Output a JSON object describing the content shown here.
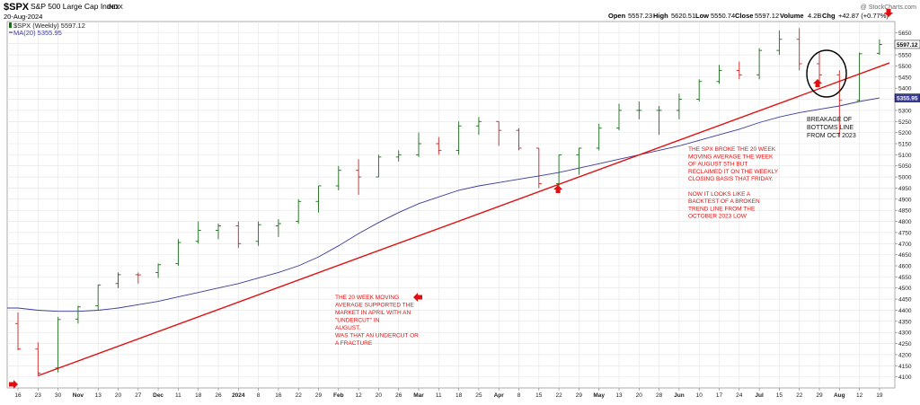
{
  "header": {
    "symbol": "$SPX",
    "name": "S&P 500 Large Cap Index",
    "exchange": "INDX",
    "date": "20-Aug-2024",
    "watermark": "@ StockCharts.com",
    "open_label": "Open",
    "open": "5557.23",
    "high_label": "High",
    "high": "5620.51",
    "low_label": "Low",
    "low": "5550.74",
    "close_label": "Close",
    "close": "5597.12",
    "volume_label": "Volume",
    "volume": "4.2B",
    "chg_label": "Chg",
    "chg": "+42.87 (+0.77%)"
  },
  "legend": [
    {
      "text": "$SPX (Weekly) 5597.12",
      "color": "#222222"
    },
    {
      "text": "MA(20) 5355.95",
      "color": "#3b3b9a"
    }
  ],
  "price_tags": [
    {
      "text": "5597.12",
      "value": 5597.12,
      "bg": "#ffffff",
      "fg": "#000000"
    },
    {
      "text": "5355.95",
      "value": 5355.95,
      "bg": "#3b3b9a",
      "fg": "#ffffff"
    }
  ],
  "colors": {
    "up": "#1a6b1a",
    "down": "#cc2222",
    "ma": "#3b3b9a",
    "trend": "#e01010",
    "annotation": "#e01010"
  },
  "chart_data": {
    "type": "ohlc",
    "ylim": [
      4050,
      5700
    ],
    "yticks": [
      4100,
      4150,
      4200,
      4250,
      4300,
      4350,
      4400,
      4450,
      4500,
      4550,
      4600,
      4650,
      4700,
      4750,
      4800,
      4850,
      4900,
      4950,
      5000,
      5050,
      5100,
      5150,
      5200,
      5250,
      5300,
      5350,
      5400,
      5450,
      5500,
      5550,
      5600,
      5650
    ],
    "xticks": [
      {
        "i": 0,
        "label": "16"
      },
      {
        "i": 1,
        "label": "23"
      },
      {
        "i": 2,
        "label": "30"
      },
      {
        "i": 3,
        "label": "Nov",
        "bold": true
      },
      {
        "i": 4,
        "label": "13"
      },
      {
        "i": 5,
        "label": "20"
      },
      {
        "i": 6,
        "label": "27"
      },
      {
        "i": 7,
        "label": "Dec",
        "bold": true
      },
      {
        "i": 8,
        "label": "11"
      },
      {
        "i": 9,
        "label": "18"
      },
      {
        "i": 10,
        "label": "26"
      },
      {
        "i": 11,
        "label": "2024",
        "bold": true
      },
      {
        "i": 12,
        "label": "8"
      },
      {
        "i": 13,
        "label": "16"
      },
      {
        "i": 14,
        "label": "22"
      },
      {
        "i": 15,
        "label": "29"
      },
      {
        "i": 16,
        "label": "Feb",
        "bold": true
      },
      {
        "i": 17,
        "label": "12"
      },
      {
        "i": 18,
        "label": "20"
      },
      {
        "i": 19,
        "label": "26"
      },
      {
        "i": 20,
        "label": "Mar",
        "bold": true
      },
      {
        "i": 21,
        "label": "11"
      },
      {
        "i": 22,
        "label": "18"
      },
      {
        "i": 23,
        "label": "25"
      },
      {
        "i": 24,
        "label": "Apr",
        "bold": true
      },
      {
        "i": 25,
        "label": "8"
      },
      {
        "i": 26,
        "label": "15"
      },
      {
        "i": 27,
        "label": "22"
      },
      {
        "i": 28,
        "label": "29"
      },
      {
        "i": 29,
        "label": "May",
        "bold": true
      },
      {
        "i": 30,
        "label": "13"
      },
      {
        "i": 31,
        "label": "20"
      },
      {
        "i": 32,
        "label": "28"
      },
      {
        "i": 33,
        "label": "Jun",
        "bold": true
      },
      {
        "i": 34,
        "label": "10"
      },
      {
        "i": 35,
        "label": "17"
      },
      {
        "i": 36,
        "label": "24"
      },
      {
        "i": 37,
        "label": "Jul",
        "bold": true
      },
      {
        "i": 38,
        "label": "15"
      },
      {
        "i": 39,
        "label": "22"
      },
      {
        "i": 40,
        "label": "29"
      },
      {
        "i": 41,
        "label": "Aug",
        "bold": true
      },
      {
        "i": 42,
        "label": "12"
      },
      {
        "i": 43,
        "label": "19"
      }
    ],
    "ohlc": [
      [
        4340,
        4390,
        4220,
        4225
      ],
      [
        4225,
        4255,
        4105,
        4117
      ],
      [
        4140,
        4370,
        4120,
        4358
      ],
      [
        4360,
        4420,
        4340,
        4415
      ],
      [
        4420,
        4515,
        4400,
        4514
      ],
      [
        4520,
        4570,
        4500,
        4560
      ],
      [
        4560,
        4570,
        4520,
        4559
      ],
      [
        4570,
        4610,
        4545,
        4605
      ],
      [
        4610,
        4720,
        4600,
        4705
      ],
      [
        4710,
        4800,
        4700,
        4760
      ],
      [
        4760,
        4790,
        4720,
        4780
      ],
      [
        4780,
        4800,
        4680,
        4700
      ],
      [
        4710,
        4800,
        4690,
        4785
      ],
      [
        4780,
        4810,
        4730,
        4790
      ],
      [
        4800,
        4900,
        4790,
        4890
      ],
      [
        4890,
        4960,
        4840,
        4960
      ],
      [
        4960,
        5050,
        4940,
        5030
      ],
      [
        5030,
        5080,
        4920,
        5000
      ],
      [
        5000,
        5100,
        5000,
        5090
      ],
      [
        5090,
        5120,
        5070,
        5100
      ],
      [
        5100,
        5200,
        5090,
        5150
      ],
      [
        5150,
        5180,
        5100,
        5120
      ],
      [
        5120,
        5250,
        5100,
        5230
      ],
      [
        5230,
        5270,
        5190,
        5250
      ],
      [
        5250,
        5250,
        5140,
        5210
      ],
      [
        5210,
        5220,
        5120,
        5130
      ],
      [
        5130,
        5130,
        4950,
        4970
      ],
      [
        4970,
        5100,
        4960,
        5100
      ],
      [
        5100,
        5130,
        5010,
        5130
      ],
      [
        5130,
        5240,
        5120,
        5220
      ],
      [
        5220,
        5330,
        5210,
        5300
      ],
      [
        5300,
        5340,
        5260,
        5300
      ],
      [
        5300,
        5320,
        5190,
        5300
      ],
      [
        5300,
        5375,
        5260,
        5350
      ],
      [
        5350,
        5440,
        5340,
        5430
      ],
      [
        5430,
        5505,
        5420,
        5480
      ],
      [
        5480,
        5520,
        5440,
        5460
      ],
      [
        5460,
        5580,
        5440,
        5570
      ],
      [
        5570,
        5660,
        5550,
        5620
      ],
      [
        5620,
        5670,
        5480,
        5510
      ],
      [
        5510,
        5560,
        5410,
        5460
      ],
      [
        5460,
        5480,
        5180,
        5345
      ],
      [
        5345,
        5560,
        5340,
        5555
      ],
      [
        5557,
        5620,
        5550,
        5597
      ]
    ],
    "ma20": [
      4410,
      4400,
      4395,
      4395,
      4400,
      4410,
      4425,
      4440,
      4460,
      4480,
      4500,
      4520,
      4545,
      4570,
      4600,
      4640,
      4690,
      4745,
      4795,
      4840,
      4880,
      4910,
      4940,
      4960,
      4975,
      4990,
      5005,
      5020,
      5040,
      5060,
      5080,
      5100,
      5120,
      5140,
      5165,
      5190,
      5215,
      5245,
      5270,
      5290,
      5305,
      5320,
      5340,
      5356
    ]
  },
  "annotations": {
    "note_left": [
      "THE 20 WEEK MOVING",
      "AVERAGE SUPPORTED THE",
      "MARKET IN APRIL WITH AN",
      "\"UNDERCUT\" IN",
      "AUGUST.",
      "WAS THAT AN UNDERCUT OR",
      "A FRACTURE"
    ],
    "note_right": [
      "THE SPX BROKE THE 20 WEEK",
      "MOVING AVERAGE THE WEEK",
      "OF AUGUST 5TH  BUT",
      "RECLAIMED IT ON THE WEEKLY",
      "CLOSING BASIS THAT FRIDAY.",
      "",
      "NOW IT LOOKS LIKE A",
      "BACKTEST OF A BROKEN",
      "TREND LINE FROM THE",
      "OCTOBER 2023 LOW"
    ],
    "note_break": [
      "BREAKAGE OF",
      "BOTTOMS LINE",
      "FROM OCT 2023"
    ]
  }
}
